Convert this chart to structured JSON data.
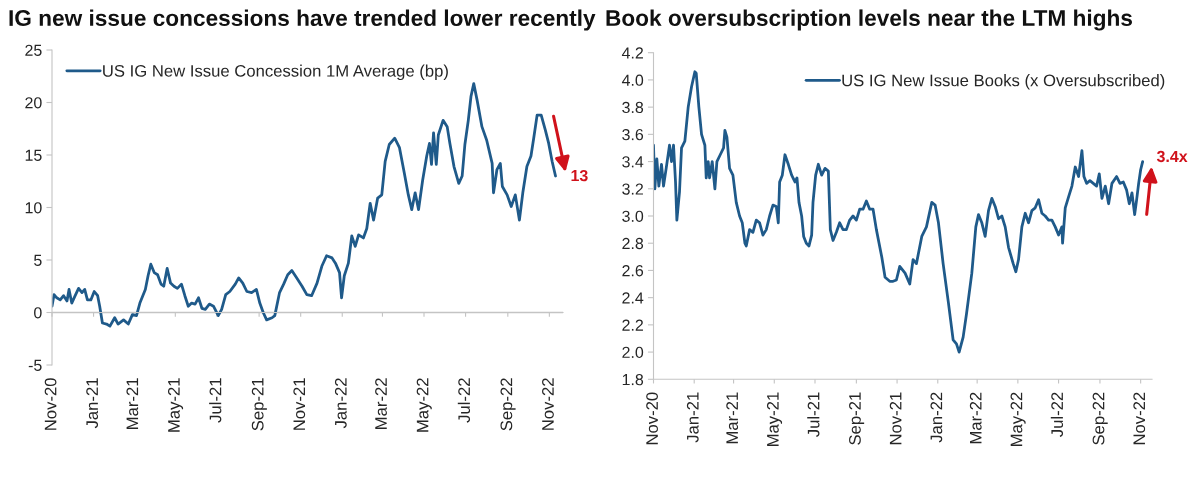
{
  "chart_data": [
    {
      "type": "line",
      "title": "IG new issue concessions have trended lower recently",
      "x": [
        "2020-11-01",
        "2020-11-04",
        "2020-11-08",
        "2020-11-13",
        "2020-11-18",
        "2020-11-23",
        "2020-11-26",
        "2020-11-30",
        "2020-12-05",
        "2020-12-10",
        "2020-12-15",
        "2020-12-19",
        "2020-12-23",
        "2020-12-28",
        "2021-01-02",
        "2021-01-07",
        "2021-01-10",
        "2021-01-14",
        "2021-01-20",
        "2021-01-25",
        "2021-02-01",
        "2021-02-06",
        "2021-02-14",
        "2021-02-21",
        "2021-02-27",
        "2021-03-05",
        "2021-03-10",
        "2021-03-18",
        "2021-03-22",
        "2021-03-26",
        "2021-03-31",
        "2021-04-05",
        "2021-04-10",
        "2021-04-14",
        "2021-04-19",
        "2021-04-24",
        "2021-04-29",
        "2021-05-04",
        "2021-05-10",
        "2021-05-15",
        "2021-05-20",
        "2021-05-25",
        "2021-05-30",
        "2021-06-04",
        "2021-06-09",
        "2021-06-14",
        "2021-06-20",
        "2021-06-26",
        "2021-07-03",
        "2021-07-08",
        "2021-07-14",
        "2021-07-20",
        "2021-07-28",
        "2021-08-02",
        "2021-08-08",
        "2021-08-14",
        "2021-08-21",
        "2021-08-28",
        "2021-09-02",
        "2021-09-07",
        "2021-09-12",
        "2021-09-20",
        "2021-09-24",
        "2021-10-01",
        "2021-10-07",
        "2021-10-13",
        "2021-10-19",
        "2021-10-26",
        "2021-11-03",
        "2021-11-10",
        "2021-11-17",
        "2021-11-25",
        "2021-12-02",
        "2021-12-09",
        "2021-12-17",
        "2021-12-22",
        "2021-12-28",
        "2021-12-31",
        "2022-01-04",
        "2022-01-10",
        "2022-01-15",
        "2022-01-20",
        "2022-01-25",
        "2022-02-01",
        "2022-02-06",
        "2022-02-11",
        "2022-02-16",
        "2022-02-22",
        "2022-02-28",
        "2022-03-05",
        "2022-03-11",
        "2022-03-19",
        "2022-03-26",
        "2022-04-02",
        "2022-04-08",
        "2022-04-13",
        "2022-04-18",
        "2022-04-23",
        "2022-04-29",
        "2022-05-05",
        "2022-05-09",
        "2022-05-12",
        "2022-05-15",
        "2022-05-19",
        "2022-05-22",
        "2022-05-29",
        "2022-06-04",
        "2022-06-08",
        "2022-06-14",
        "2022-06-21",
        "2022-06-26",
        "2022-06-30",
        "2022-07-05",
        "2022-07-09",
        "2022-07-13",
        "2022-07-18",
        "2022-07-25",
        "2022-08-01",
        "2022-08-09",
        "2022-08-11",
        "2022-08-16",
        "2022-08-21",
        "2022-08-24",
        "2022-08-31",
        "2022-09-06",
        "2022-09-12",
        "2022-09-18",
        "2022-09-23",
        "2022-09-29",
        "2022-10-05",
        "2022-10-09",
        "2022-10-14",
        "2022-10-20",
        "2022-10-26",
        "2022-10-31",
        "2022-11-05",
        "2022-11-10"
      ],
      "series": [
        {
          "name": "US IG New Issue Concession 1M Average (bp)",
          "color": "#1f5a8a",
          "values": [
            0.6,
            1.7,
            1.4,
            1.2,
            1.6,
            1.1,
            2.2,
            0.9,
            1.6,
            2.3,
            1.9,
            2.2,
            1.2,
            1.2,
            2.0,
            1.6,
            0.6,
            -1.0,
            -1.1,
            -1.3,
            -0.5,
            -1.1,
            -0.7,
            -1.1,
            -0.2,
            -0.3,
            0.9,
            2.2,
            3.5,
            4.6,
            3.8,
            3.6,
            2.7,
            2.5,
            4.2,
            2.8,
            2.5,
            2.3,
            2.7,
            1.6,
            0.6,
            0.9,
            0.8,
            1.4,
            0.4,
            0.3,
            0.8,
            0.6,
            -0.3,
            0.3,
            1.7,
            2.0,
            2.7,
            3.3,
            2.8,
            2.0,
            1.9,
            2.2,
            0.9,
            0.0,
            -0.7,
            -0.5,
            -0.3,
            1.9,
            2.7,
            3.6,
            4.0,
            3.3,
            2.5,
            1.7,
            1.6,
            2.8,
            4.4,
            5.4,
            5.2,
            4.7,
            3.8,
            1.4,
            3.5,
            4.7,
            7.3,
            6.3,
            7.4,
            7.1,
            8.0,
            10.4,
            8.8,
            10.9,
            11.2,
            14.4,
            16.0,
            16.6,
            15.7,
            13.3,
            11.2,
            9.8,
            11.4,
            9.8,
            12.6,
            14.9,
            16.1,
            14.1,
            17.1,
            14.1,
            16.9,
            18.3,
            17.7,
            16.1,
            13.9,
            12.3,
            13.0,
            16.0,
            18.3,
            20.6,
            21.8,
            20.2,
            17.7,
            16.4,
            14.2,
            11.4,
            13.6,
            14.2,
            12.0,
            11.2,
            10.1,
            11.2,
            8.8,
            11.4,
            13.9,
            14.9,
            16.6,
            18.8,
            18.8,
            17.4,
            16.1,
            14.4,
            13.0
          ]
        }
      ],
      "xlim": [
        "2020-11-01",
        "2022-11-21"
      ],
      "xticks": [
        {
          "value": "2020-11-01",
          "label": "Nov-20"
        },
        {
          "value": "2021-01-01",
          "label": "Jan-21"
        },
        {
          "value": "2021-03-01",
          "label": "Mar-21"
        },
        {
          "value": "2021-05-01",
          "label": "May-21"
        },
        {
          "value": "2021-07-01",
          "label": "Jul-21"
        },
        {
          "value": "2021-09-01",
          "label": "Sep-21"
        },
        {
          "value": "2021-11-01",
          "label": "Nov-21"
        },
        {
          "value": "2022-01-01",
          "label": "Jan-22"
        },
        {
          "value": "2022-03-01",
          "label": "Mar-22"
        },
        {
          "value": "2022-05-01",
          "label": "May-22"
        },
        {
          "value": "2022-07-01",
          "label": "Jul-22"
        },
        {
          "value": "2022-09-01",
          "label": "Sep-22"
        },
        {
          "value": "2022-11-01",
          "label": "Nov-22"
        }
      ],
      "ylim": [
        -5,
        25
      ],
      "yticks": [
        -5,
        0,
        5,
        10,
        15,
        20,
        25
      ],
      "grid": false,
      "legend": "top left",
      "ref_lines": [
        {
          "axis": "y",
          "value": 0,
          "color": "#c4c4c4"
        }
      ],
      "annotations": [
        {
          "text": "13",
          "x": "2022-11-10",
          "y": 13.0
        }
      ]
    },
    {
      "type": "line",
      "title": "Book oversubscription levels near the LTM highs",
      "x": [
        "2020-11-01",
        "2020-11-03",
        "2020-11-06",
        "2020-11-09",
        "2020-11-13",
        "2020-11-16",
        "2020-11-20",
        "2020-11-25",
        "2020-11-28",
        "2020-12-01",
        "2020-12-04",
        "2020-12-06",
        "2020-12-10",
        "2020-12-13",
        "2020-12-18",
        "2020-12-23",
        "2020-12-28",
        "2021-01-02",
        "2021-01-04",
        "2021-01-08",
        "2021-01-12",
        "2021-01-17",
        "2021-01-19",
        "2021-01-22",
        "2021-01-24",
        "2021-01-28",
        "2021-02-01",
        "2021-02-04",
        "2021-02-09",
        "2021-02-14",
        "2021-02-16",
        "2021-02-19",
        "2021-02-23",
        "2021-02-28",
        "2021-03-05",
        "2021-03-10",
        "2021-03-14",
        "2021-03-18",
        "2021-03-20",
        "2021-03-25",
        "2021-03-30",
        "2021-04-04",
        "2021-04-09",
        "2021-04-14",
        "2021-04-19",
        "2021-04-24",
        "2021-04-29",
        "2021-05-04",
        "2021-05-07",
        "2021-05-09",
        "2021-05-13",
        "2021-05-17",
        "2021-05-22",
        "2021-05-27",
        "2021-06-01",
        "2021-06-04",
        "2021-06-07",
        "2021-06-11",
        "2021-06-14",
        "2021-06-18",
        "2021-06-22",
        "2021-06-26",
        "2021-06-28",
        "2021-07-02",
        "2021-07-06",
        "2021-07-11",
        "2021-07-16",
        "2021-07-21",
        "2021-07-24",
        "2021-07-28",
        "2021-08-02",
        "2021-08-07",
        "2021-08-12",
        "2021-08-17",
        "2021-08-22",
        "2021-08-27",
        "2021-09-01",
        "2021-09-06",
        "2021-09-11",
        "2021-09-16",
        "2021-09-21",
        "2021-09-26",
        "2021-10-01",
        "2021-10-09",
        "2021-10-14",
        "2021-10-21",
        "2021-10-26",
        "2021-10-31",
        "2021-11-05",
        "2021-11-13",
        "2021-11-20",
        "2021-11-25",
        "2021-11-30",
        "2021-12-08",
        "2021-12-15",
        "2021-12-23",
        "2021-12-28",
        "2022-01-02",
        "2022-01-09",
        "2022-01-17",
        "2022-01-24",
        "2022-01-29",
        "2022-02-02",
        "2022-02-08",
        "2022-02-13",
        "2022-02-21",
        "2022-02-27",
        "2022-03-03",
        "2022-03-08",
        "2022-03-13",
        "2022-03-18",
        "2022-03-23",
        "2022-03-28",
        "2022-04-02",
        "2022-04-07",
        "2022-04-12",
        "2022-04-17",
        "2022-04-24",
        "2022-04-28",
        "2022-05-02",
        "2022-05-07",
        "2022-05-12",
        "2022-05-17",
        "2022-05-22",
        "2022-05-27",
        "2022-06-01",
        "2022-06-06",
        "2022-06-11",
        "2022-06-16",
        "2022-06-21",
        "2022-06-26",
        "2022-07-01",
        "2022-07-06",
        "2022-07-07",
        "2022-07-11",
        "2022-07-16",
        "2022-07-21",
        "2022-07-26",
        "2022-07-31",
        "2022-08-05",
        "2022-08-08",
        "2022-08-12",
        "2022-08-17",
        "2022-08-22",
        "2022-08-27",
        "2022-08-31",
        "2022-09-04",
        "2022-09-09",
        "2022-09-14",
        "2022-09-19",
        "2022-09-26",
        "2022-10-01",
        "2022-10-06",
        "2022-10-11",
        "2022-10-15",
        "2022-10-19",
        "2022-10-23",
        "2022-10-26",
        "2022-10-29",
        "2022-11-01",
        "2022-11-04"
      ],
      "series": [
        {
          "name": "US IG New Issue Books (x Oversubscribed)",
          "color": "#1f5a8a",
          "values": [
            3.52,
            3.2,
            3.42,
            3.22,
            3.38,
            3.22,
            3.35,
            3.52,
            3.4,
            3.52,
            3.25,
            2.97,
            3.18,
            3.5,
            3.55,
            3.8,
            3.95,
            4.06,
            4.05,
            3.8,
            3.6,
            3.52,
            3.28,
            3.4,
            3.28,
            3.4,
            3.2,
            3.4,
            3.45,
            3.5,
            3.63,
            3.58,
            3.35,
            3.3,
            3.1,
            3.0,
            2.95,
            2.8,
            2.78,
            2.9,
            2.88,
            2.97,
            2.95,
            2.86,
            2.9,
            3.0,
            3.08,
            3.07,
            2.95,
            3.25,
            3.3,
            3.45,
            3.38,
            3.3,
            3.25,
            3.28,
            3.1,
            3.0,
            2.85,
            2.8,
            2.78,
            2.86,
            3.1,
            3.3,
            3.38,
            3.3,
            3.35,
            3.33,
            2.9,
            2.82,
            2.88,
            2.95,
            2.9,
            2.9,
            2.97,
            3.0,
            2.97,
            3.05,
            3.05,
            3.11,
            3.05,
            3.05,
            2.9,
            2.7,
            2.55,
            2.52,
            2.52,
            2.53,
            2.63,
            2.58,
            2.5,
            2.68,
            2.65,
            2.85,
            2.92,
            3.1,
            3.08,
            2.95,
            2.65,
            2.36,
            2.09,
            2.06,
            2.0,
            2.11,
            2.28,
            2.58,
            2.92,
            3.01,
            2.95,
            2.85,
            3.04,
            3.13,
            3.07,
            2.98,
            3.0,
            2.92,
            2.77,
            2.65,
            2.59,
            2.68,
            2.92,
            3.02,
            2.95,
            3.04,
            3.06,
            3.12,
            3.02,
            3.0,
            2.97,
            2.97,
            2.92,
            2.86,
            2.92,
            2.8,
            3.06,
            3.14,
            3.22,
            3.36,
            3.29,
            3.48,
            3.29,
            3.24,
            3.26,
            3.24,
            3.22,
            3.31,
            3.13,
            3.22,
            3.09,
            3.24,
            3.29,
            3.24,
            3.25,
            3.19,
            3.09,
            3.17,
            3.01,
            3.12,
            3.24,
            3.34,
            3.4
          ]
        }
      ],
      "xlim": [
        "2020-11-01",
        "2022-11-18"
      ],
      "xticks": [
        {
          "value": "2020-11-01",
          "label": "Nov-20"
        },
        {
          "value": "2021-01-01",
          "label": "Jan-21"
        },
        {
          "value": "2021-03-01",
          "label": "Mar-21"
        },
        {
          "value": "2021-05-01",
          "label": "May-21"
        },
        {
          "value": "2021-07-01",
          "label": "Jul-21"
        },
        {
          "value": "2021-09-01",
          "label": "Sep-21"
        },
        {
          "value": "2021-11-01",
          "label": "Nov-21"
        },
        {
          "value": "2022-01-01",
          "label": "Jan-22"
        },
        {
          "value": "2022-03-01",
          "label": "Mar-22"
        },
        {
          "value": "2022-05-01",
          "label": "May-22"
        },
        {
          "value": "2022-07-01",
          "label": "Jul-22"
        },
        {
          "value": "2022-09-01",
          "label": "Sep-22"
        },
        {
          "value": "2022-11-01",
          "label": "Nov-22"
        }
      ],
      "ylim": [
        1.8,
        4.2
      ],
      "yticks": [
        1.8,
        {
          "value": 2,
          "label": "2.0"
        },
        2.2,
        2.4,
        2.6,
        2.8,
        {
          "value": 3,
          "label": "3.0"
        },
        3.2,
        3.4,
        3.6,
        3.8,
        {
          "value": 4,
          "label": "4.0"
        },
        4.2
      ],
      "grid": false,
      "legend": "top right",
      "annotations": [
        {
          "text": "3.4x",
          "x": "2022-11-04",
          "y": 3.4
        }
      ]
    }
  ]
}
